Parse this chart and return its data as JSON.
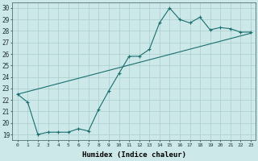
{
  "xlabel": "Humidex (Indice chaleur)",
  "ylabel": "",
  "bg_color": "#cce8e8",
  "line_color": "#1a6e6e",
  "grid_color": "#aacece",
  "xlim": [
    -0.5,
    23.5
  ],
  "ylim": [
    18.5,
    30.5
  ],
  "xticks": [
    0,
    1,
    2,
    3,
    4,
    5,
    6,
    7,
    8,
    9,
    10,
    11,
    12,
    13,
    14,
    15,
    16,
    17,
    18,
    19,
    20,
    21,
    22,
    23
  ],
  "yticks": [
    19,
    20,
    21,
    22,
    23,
    24,
    25,
    26,
    27,
    28,
    29,
    30
  ],
  "line1_x": [
    0,
    1,
    2,
    3,
    4,
    5,
    6,
    7,
    8,
    9,
    10,
    11,
    12,
    13,
    14,
    15,
    16,
    17,
    18,
    19,
    20,
    21,
    22,
    23
  ],
  "line1_y": [
    22.5,
    21.8,
    19.0,
    19.2,
    19.2,
    19.2,
    19.5,
    19.3,
    21.2,
    22.8,
    24.3,
    25.8,
    25.8,
    26.4,
    28.7,
    30.0,
    29.0,
    28.7,
    29.2,
    28.1,
    28.3,
    28.2,
    27.9,
    27.9
  ],
  "line2_x": [
    0,
    23
  ],
  "line2_y": [
    22.5,
    27.8
  ]
}
